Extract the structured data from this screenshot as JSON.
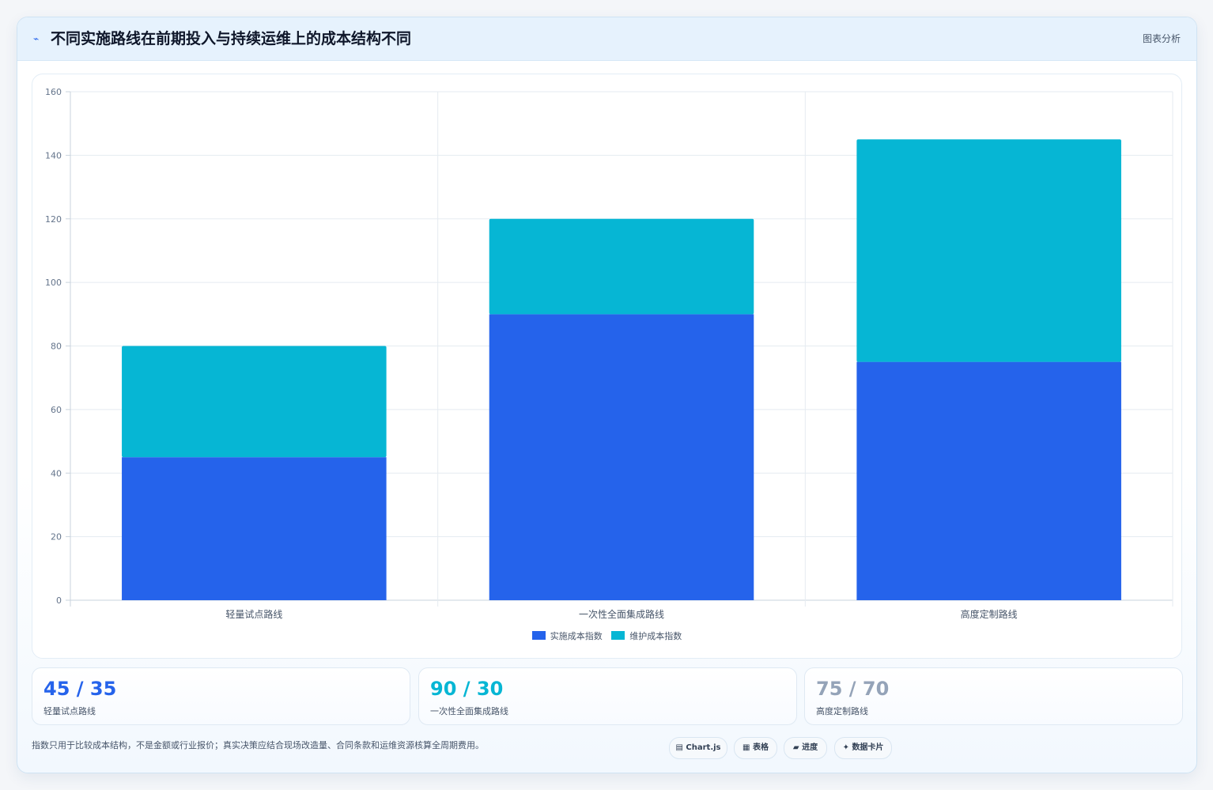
{
  "header": {
    "icon": "trend-icon",
    "title": "不同实施路线在前期投入与持续运维上的成本结构不同",
    "action_label": "图表分析"
  },
  "chart_data": {
    "type": "bar",
    "stacked": true,
    "categories": [
      "轻量试点路线",
      "一次性全面集成路线",
      "高度定制路线"
    ],
    "series": [
      {
        "name": "实施成本指数",
        "values": [
          45,
          90,
          75
        ],
        "color": "#2563eb"
      },
      {
        "name": "维护成本指数",
        "values": [
          35,
          30,
          70
        ],
        "color": "#06b6d4"
      }
    ],
    "ylim": [
      0,
      160
    ],
    "yticks": [
      0,
      20,
      40,
      60,
      80,
      100,
      120,
      140,
      160
    ],
    "grid": true,
    "legend": "bottom"
  },
  "stats": [
    {
      "value": "45 / 35",
      "label": "轻量试点路线",
      "color": "#2563eb"
    },
    {
      "value": "90 / 30",
      "label": "一次性全面集成路线",
      "color": "#06b6d4"
    },
    {
      "value": "75 / 70",
      "label": "高度定制路线",
      "color": "#94a3b8"
    }
  ],
  "footer": {
    "note": "指数只用于比较成本结构，不是金额或行业报价；真实决策应结合现场改造量、合同条款和运维资源核算全周期费用。",
    "tags": [
      {
        "icon": "chart-icon",
        "glyph": "▤",
        "label": "Chart.js"
      },
      {
        "icon": "table-icon",
        "glyph": "▦",
        "label": "表格"
      },
      {
        "icon": "progress-icon",
        "glyph": "▰",
        "label": "进度"
      },
      {
        "icon": "card-icon",
        "glyph": "✦",
        "label": "数据卡片"
      }
    ]
  }
}
